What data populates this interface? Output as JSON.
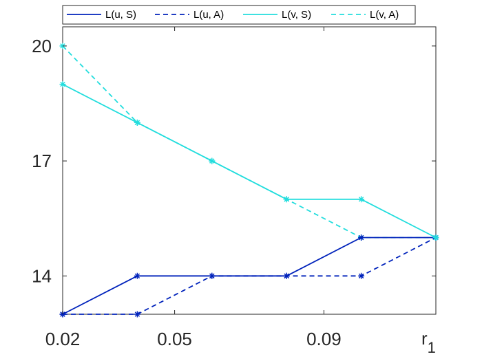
{
  "chart_data": {
    "type": "line",
    "xlabel": "r",
    "xlabel_subscript": "1",
    "ylabel": "",
    "x": [
      0.02,
      0.04,
      0.06,
      0.08,
      0.1,
      0.12
    ],
    "xticks": [
      {
        "value": 0.02,
        "label": "0.02"
      },
      {
        "value": 0.05,
        "label": "0.05"
      },
      {
        "value": 0.09,
        "label": "0.09"
      }
    ],
    "xlim": [
      0.02,
      0.12
    ],
    "ylim": [
      13,
      20.5
    ],
    "yticks": [
      {
        "value": 14,
        "label": "14"
      },
      {
        "value": 17,
        "label": "17"
      },
      {
        "value": 20,
        "label": "20"
      }
    ],
    "grid": false,
    "legend_position": "top",
    "series": [
      {
        "name": "L(u, S)",
        "color": "#0022bb",
        "style": "solid",
        "marker": "asterisk",
        "values": [
          13,
          14,
          14,
          14,
          15,
          15
        ]
      },
      {
        "name": "L(u, A)",
        "color": "#0022bb",
        "style": "dashed",
        "marker": "asterisk",
        "values": [
          13,
          13,
          14,
          14,
          14,
          15
        ]
      },
      {
        "name": "L(v, S)",
        "color": "#22dddd",
        "style": "solid",
        "marker": "asterisk",
        "values": [
          19,
          18,
          17,
          16,
          16,
          15
        ]
      },
      {
        "name": "L(v, A)",
        "color": "#22dddd",
        "style": "dashed",
        "marker": "asterisk",
        "values": [
          20,
          18,
          17,
          16,
          15,
          15
        ]
      }
    ]
  }
}
